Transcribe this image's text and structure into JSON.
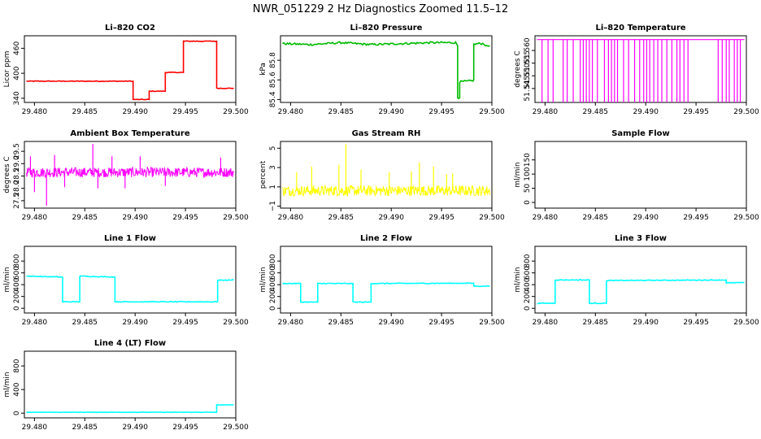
{
  "figure_title": "NWR_051229  2 Hz Diagnostics Zoomed 11.5–12",
  "chart_data": [
    {
      "type": "line",
      "title": "Li–820 CO2",
      "ylabel": "Licor ppm",
      "color": "#ff0000",
      "xlim": [
        29.479,
        29.5
      ],
      "ylim": [
        330,
        490
      ],
      "xticks": [
        29.48,
        29.485,
        29.49,
        29.495,
        29.5
      ],
      "xtick_labels": [
        "29.480",
        "29.485",
        "29.490",
        "29.495",
        "29.500"
      ],
      "yticks": [
        340,
        400,
        460
      ],
      "ytick_labels": [
        "340",
        "400",
        "460"
      ],
      "noise": 0.8,
      "series": [
        {
          "name": "CO2",
          "x": [
            29.4792,
            29.4898,
            29.4898,
            29.4914,
            29.4914,
            29.493,
            29.493,
            29.4948,
            29.4948,
            29.4981,
            29.4981,
            29.4998
          ],
          "y": [
            381,
            381,
            337,
            337,
            357,
            357,
            402,
            402,
            477,
            477,
            364,
            364
          ]
        }
      ]
    },
    {
      "type": "line",
      "title": "Li–820 Pressure",
      "ylabel": "kPa",
      "color": "#00bb00",
      "xlim": [
        29.479,
        29.5
      ],
      "ylim": [
        85.37,
        86.05
      ],
      "xticks": [
        29.48,
        29.485,
        29.49,
        29.495,
        29.5
      ],
      "xtick_labels": [
        "29.480",
        "29.485",
        "29.490",
        "29.495",
        "29.500"
      ],
      "yticks": [
        85.4,
        85.6,
        85.8
      ],
      "ytick_labels": [
        "85.4",
        "85.6",
        "85.8"
      ],
      "noise": 0.01,
      "series": [
        {
          "name": "Pressure",
          "x": [
            29.4792,
            29.482,
            29.485,
            29.488,
            29.491,
            29.494,
            29.4964,
            29.4966,
            29.4966,
            29.4968,
            29.4968,
            29.498,
            29.4982,
            29.4982,
            29.4986,
            29.4992,
            29.4995,
            29.4998
          ],
          "y": [
            85.97,
            85.96,
            85.98,
            85.96,
            85.97,
            85.98,
            85.98,
            85.95,
            85.42,
            85.42,
            85.58,
            85.59,
            85.6,
            85.96,
            85.97,
            85.97,
            85.94,
            85.95
          ]
        }
      ]
    },
    {
      "type": "spikes",
      "title": "Li–820 Temperature",
      "ylabel": "degrees C",
      "color": "#ff00ff",
      "xlim": [
        29.479,
        29.5
      ],
      "ylim": [
        51.5395,
        51.5658
      ],
      "xticks": [
        29.48,
        29.485,
        29.49,
        29.495,
        29.5
      ],
      "xtick_labels": [
        "29.480",
        "29.485",
        "29.490",
        "29.495",
        "29.500"
      ],
      "yticks": [
        51.545,
        51.55,
        51.555,
        51.56
      ],
      "ytick_labels": [
        "51.545",
        "51.550",
        "51.555",
        "51.560"
      ],
      "baseline": 51.5643,
      "base_x": [
        29.4792,
        29.4998
      ],
      "spike_low": 51.5395,
      "spike_x": [
        29.4797,
        29.4803,
        29.4808,
        29.4818,
        29.4822,
        29.4828,
        29.4835,
        29.4838,
        29.4841,
        29.4844,
        29.4847,
        29.4852,
        29.4859,
        29.4863,
        29.4866,
        29.4869,
        29.4872,
        29.4878,
        29.4883,
        29.4889,
        29.4894,
        29.4898,
        29.4901,
        29.4904,
        29.4908,
        29.4912,
        29.4916,
        29.4921,
        29.4926,
        29.4931,
        29.4934,
        29.4938,
        29.4942,
        29.4972,
        29.4976,
        29.498,
        29.4983,
        29.4988,
        29.4991,
        29.4994
      ]
    },
    {
      "type": "noise",
      "title": "Ambient Box Temperature",
      "ylabel": "degrees C",
      "color": "#ff00ff",
      "xlim": [
        29.479,
        29.5
      ],
      "ylim": [
        27.2,
        29.9
      ],
      "xticks": [
        29.48,
        29.485,
        29.49,
        29.495,
        29.5
      ],
      "xtick_labels": [
        "29.480",
        "29.485",
        "29.490",
        "29.495",
        "29.500"
      ],
      "yticks": [
        27.5,
        28.0,
        28.5,
        29.0,
        29.5
      ],
      "ytick_labels": [
        "27.5",
        "28.0",
        "28.5",
        "29.0",
        "29.5"
      ],
      "x_range": [
        29.4792,
        29.4998
      ],
      "center": 28.65,
      "amplitude": 0.2,
      "spikes": [
        {
          "x": 29.4796,
          "y": 29.3
        },
        {
          "x": 29.48,
          "y": 27.85
        },
        {
          "x": 29.4812,
          "y": 27.3
        },
        {
          "x": 29.482,
          "y": 29.35
        },
        {
          "x": 29.483,
          "y": 28.05
        },
        {
          "x": 29.4858,
          "y": 29.8
        },
        {
          "x": 29.4863,
          "y": 28.0
        },
        {
          "x": 29.4877,
          "y": 29.3
        },
        {
          "x": 29.489,
          "y": 28.0
        },
        {
          "x": 29.4905,
          "y": 29.3
        },
        {
          "x": 29.493,
          "y": 28.1
        },
        {
          "x": 29.4985,
          "y": 29.25
        }
      ]
    },
    {
      "type": "noise",
      "title": "Gas Stream RH",
      "ylabel": "percent",
      "color": "#ffff00",
      "xlim": [
        29.479,
        29.5
      ],
      "ylim": [
        -1.2,
        5.7
      ],
      "xticks": [
        29.48,
        29.485,
        29.49,
        29.495,
        29.5
      ],
      "xtick_labels": [
        "29.480",
        "29.485",
        "29.490",
        "29.495",
        "29.500"
      ],
      "yticks": [
        -1,
        1,
        3,
        5
      ],
      "ytick_labels": [
        "−1",
        "1",
        "3",
        "5"
      ],
      "x_range": [
        29.4792,
        29.4998
      ],
      "center": 0.6,
      "amplitude": 0.55,
      "spikes": [
        {
          "x": 29.4806,
          "y": 2.5
        },
        {
          "x": 29.4821,
          "y": 3.1
        },
        {
          "x": 29.4848,
          "y": 3.3
        },
        {
          "x": 29.4855,
          "y": 5.4
        },
        {
          "x": 29.487,
          "y": 2.8
        },
        {
          "x": 29.4898,
          "y": 2.5
        },
        {
          "x": 29.492,
          "y": 2.6
        },
        {
          "x": 29.4928,
          "y": 3.5
        },
        {
          "x": 29.4942,
          "y": 3.1
        },
        {
          "x": 29.4955,
          "y": 2.3
        },
        {
          "x": 29.4961,
          "y": 2.4
        }
      ]
    },
    {
      "type": "empty",
      "title": "Sample Flow",
      "ylabel": "ml/min",
      "color": "#000000",
      "xlim": [
        29.479,
        29.5
      ],
      "ylim": [
        -20,
        215
      ],
      "xticks": [
        29.48,
        29.485,
        29.49,
        29.495,
        29.5
      ],
      "xtick_labels": [
        "29.480",
        "29.485",
        "29.490",
        "29.495",
        "29.500"
      ],
      "yticks": [
        0,
        50,
        100,
        150
      ],
      "ytick_labels": [
        "0",
        "50",
        "100",
        "150"
      ]
    },
    {
      "type": "line",
      "title": "Line 1 Flow",
      "ylabel": "ml/min",
      "color": "#00ffff",
      "xlim": [
        29.479,
        29.5
      ],
      "ylim": [
        -80,
        1050
      ],
      "xticks": [
        29.48,
        29.485,
        29.49,
        29.495,
        29.5
      ],
      "xtick_labels": [
        "29.480",
        "29.485",
        "29.490",
        "29.495",
        "29.500"
      ],
      "yticks": [
        0,
        200,
        400,
        600,
        800
      ],
      "ytick_labels": [
        "0",
        "200",
        "400",
        "600",
        "800"
      ],
      "noise": 6,
      "series": [
        {
          "name": "Line 1",
          "x": [
            29.4792,
            29.4826,
            29.4828,
            29.4828,
            29.4845,
            29.4845,
            29.488,
            29.488,
            29.4982,
            29.4982,
            29.4998
          ],
          "y": [
            545,
            530,
            525,
            110,
            110,
            545,
            530,
            110,
            110,
            475,
            480
          ]
        }
      ]
    },
    {
      "type": "line",
      "title": "Line 2 Flow",
      "ylabel": "ml/min",
      "color": "#00ffff",
      "xlim": [
        29.479,
        29.5
      ],
      "ylim": [
        -80,
        1050
      ],
      "xticks": [
        29.48,
        29.485,
        29.49,
        29.495,
        29.5
      ],
      "xtick_labels": [
        "29.480",
        "29.485",
        "29.490",
        "29.495",
        "29.500"
      ],
      "yticks": [
        0,
        200,
        400,
        600,
        800
      ],
      "ytick_labels": [
        "0",
        "200",
        "400",
        "600",
        "800"
      ],
      "noise": 6,
      "series": [
        {
          "name": "Line 2",
          "x": [
            29.4792,
            29.481,
            29.481,
            29.4827,
            29.4827,
            29.4862,
            29.4862,
            29.488,
            29.488,
            29.4982,
            29.4982,
            29.4998
          ],
          "y": [
            420,
            420,
            105,
            105,
            420,
            420,
            105,
            105,
            420,
            425,
            375,
            375
          ]
        }
      ]
    },
    {
      "type": "line",
      "title": "Line 3 Flow",
      "ylabel": "ml/min",
      "color": "#00ffff",
      "xlim": [
        29.479,
        29.5
      ],
      "ylim": [
        -80,
        1050
      ],
      "xticks": [
        29.48,
        29.485,
        29.49,
        29.495,
        29.5
      ],
      "xtick_labels": [
        "29.480",
        "29.485",
        "29.490",
        "29.495",
        "29.500"
      ],
      "yticks": [
        0,
        200,
        400,
        600,
        800
      ],
      "ytick_labels": [
        "0",
        "200",
        "400",
        "600",
        "800"
      ],
      "noise": 6,
      "series": [
        {
          "name": "Line 3",
          "x": [
            29.4792,
            29.481,
            29.481,
            29.4844,
            29.4844,
            29.4861,
            29.4861,
            29.498,
            29.498,
            29.4998
          ],
          "y": [
            85,
            85,
            480,
            480,
            85,
            85,
            470,
            480,
            430,
            435
          ]
        }
      ]
    },
    {
      "type": "line",
      "title": "Line 4 (LT) Flow",
      "ylabel": "ml/min",
      "color": "#00ffff",
      "xlim": [
        29.479,
        29.5
      ],
      "ylim": [
        -80,
        1050
      ],
      "xticks": [
        29.48,
        29.485,
        29.49,
        29.495,
        29.5
      ],
      "xtick_labels": [
        "29.480",
        "29.485",
        "29.490",
        "29.495",
        "29.500"
      ],
      "yticks": [
        0,
        400,
        800
      ],
      "ytick_labels": [
        "0",
        "400",
        "800"
      ],
      "noise": 3,
      "series": [
        {
          "name": "Line 4",
          "x": [
            29.4792,
            29.4981,
            29.4981,
            29.4998
          ],
          "y": [
            15,
            15,
            140,
            140
          ]
        }
      ]
    }
  ]
}
